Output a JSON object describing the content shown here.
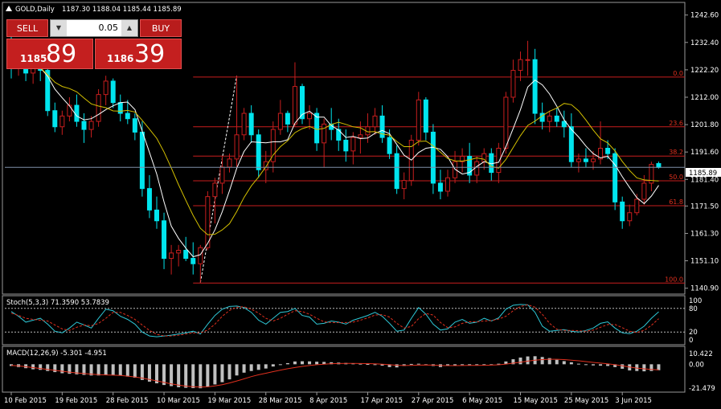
{
  "header": {
    "symbol": "GOLD,Daily",
    "ohlc": "1187.30 1188.04 1185.44 1185.89"
  },
  "trade_panel": {
    "sell_label": "SELL",
    "buy_label": "BUY",
    "lot_value": "0.05",
    "bid_small": "1185",
    "bid_big": "89",
    "ask_small": "1186",
    "ask_big": "39"
  },
  "colors": {
    "background": "#000000",
    "bull_candle": "#000000",
    "bull_candle_border": "#ffffff",
    "bear_candle": "#00e5ee",
    "fib_lines": "#c81e1e",
    "ma_fast": "#ffffff",
    "ma_slow": "#d4c000",
    "stoch_main": "#2ec7d6",
    "stoch_signal": "#e0301e",
    "macd_hist": "#c0c0c0",
    "macd_signal": "#e0301e",
    "price_line": "#7f8fa8"
  },
  "chart_data": {
    "type": "candlestick",
    "symbol": "GOLD",
    "timeframe": "Daily",
    "y_ticks": [
      1242.6,
      1232.4,
      1222.2,
      1212.0,
      1201.8,
      1191.6,
      1181.4,
      1171.5,
      1161.3,
      1151.1,
      1140.9
    ],
    "y_tick_labels": [
      "1242.60",
      "1232.40",
      "1222.20",
      "1212.00",
      "1201.80",
      "1191.60",
      "1181.40",
      "1171.50",
      "1161.30",
      "1151.10",
      "1140.90"
    ],
    "ylim": [
      1139.0,
      1247.0
    ],
    "current_price": 1185.89,
    "current_price_label": "1185.89",
    "x_labels": [
      {
        "index": 0,
        "label": "10 Feb 2015"
      },
      {
        "index": 7,
        "label": "19 Feb 2015"
      },
      {
        "index": 14,
        "label": "28 Feb 2015"
      },
      {
        "index": 21,
        "label": "10 Mar 2015"
      },
      {
        "index": 28,
        "label": "19 Mar 2015"
      },
      {
        "index": 35,
        "label": "28 Mar 2015"
      },
      {
        "index": 42,
        "label": "8 Apr 2015"
      },
      {
        "index": 49,
        "label": "17 Apr 2015"
      },
      {
        "index": 56,
        "label": "27 Apr 2015"
      },
      {
        "index": 63,
        "label": "6 May 2015"
      },
      {
        "index": 70,
        "label": "15 May 2015"
      },
      {
        "index": 77,
        "label": "25 May 2015"
      },
      {
        "index": 84,
        "label": "3 Jun 2015"
      }
    ],
    "ohlc": [
      [
        1232.0,
        1236.0,
        1219.0,
        1223.0
      ],
      [
        1223.0,
        1230.0,
        1220.0,
        1225.0
      ],
      [
        1225.0,
        1227.0,
        1218.0,
        1221.0
      ],
      [
        1221.0,
        1226.0,
        1217.0,
        1224.0
      ],
      [
        1224.0,
        1226.0,
        1218.0,
        1222.0
      ],
      [
        1222.0,
        1223.0,
        1205.0,
        1207.0
      ],
      [
        1207.0,
        1210.0,
        1199.0,
        1201.0
      ],
      [
        1201.0,
        1207.0,
        1198.0,
        1205.0
      ],
      [
        1205.0,
        1212.0,
        1203.0,
        1209.0
      ],
      [
        1209.0,
        1213.0,
        1201.0,
        1203.0
      ],
      [
        1203.0,
        1206.0,
        1195.0,
        1200.0
      ],
      [
        1200.0,
        1205.0,
        1197.0,
        1203.0
      ],
      [
        1203.0,
        1215.0,
        1201.0,
        1213.0
      ],
      [
        1213.0,
        1220.0,
        1209.0,
        1218.0
      ],
      [
        1218.0,
        1219.0,
        1208.0,
        1210.0
      ],
      [
        1210.0,
        1213.0,
        1203.0,
        1206.0
      ],
      [
        1206.0,
        1211.0,
        1202.0,
        1204.0
      ],
      [
        1204.0,
        1206.0,
        1196.0,
        1199.0
      ],
      [
        1199.0,
        1203.0,
        1175.0,
        1178.0
      ],
      [
        1178.0,
        1183.0,
        1167.0,
        1170.0
      ],
      [
        1170.0,
        1175.0,
        1163.0,
        1166.0
      ],
      [
        1166.0,
        1169.0,
        1148.0,
        1152.0
      ],
      [
        1152.0,
        1157.0,
        1146.0,
        1154.0
      ],
      [
        1154.0,
        1157.0,
        1149.0,
        1155.0
      ],
      [
        1155.0,
        1160.0,
        1151.0,
        1152.0
      ],
      [
        1152.0,
        1158.0,
        1146.0,
        1150.0
      ],
      [
        1150.0,
        1157.0,
        1143.0,
        1156.0
      ],
      [
        1156.0,
        1177.0,
        1155.0,
        1175.0
      ],
      [
        1175.0,
        1182.0,
        1165.0,
        1180.0
      ],
      [
        1180.0,
        1190.0,
        1176.0,
        1186.0
      ],
      [
        1186.0,
        1191.0,
        1184.0,
        1189.0
      ],
      [
        1189.0,
        1220.0,
        1186.0,
        1198.0
      ],
      [
        1198.0,
        1208.0,
        1196.0,
        1206.0
      ],
      [
        1206.0,
        1209.0,
        1195.0,
        1198.0
      ],
      [
        1198.0,
        1200.0,
        1182.0,
        1185.0
      ],
      [
        1185.0,
        1192.0,
        1180.0,
        1188.0
      ],
      [
        1188.0,
        1203.0,
        1184.0,
        1200.0
      ],
      [
        1200.0,
        1211.0,
        1198.0,
        1206.0
      ],
      [
        1206.0,
        1207.0,
        1199.0,
        1202.0
      ],
      [
        1202.0,
        1225.0,
        1201.0,
        1216.0
      ],
      [
        1216.0,
        1217.0,
        1202.0,
        1204.0
      ],
      [
        1204.0,
        1209.0,
        1200.0,
        1206.0
      ],
      [
        1206.0,
        1208.0,
        1192.0,
        1195.0
      ],
      [
        1195.0,
        1204.0,
        1186.0,
        1202.0
      ],
      [
        1202.0,
        1208.0,
        1196.0,
        1200.0
      ],
      [
        1200.0,
        1204.0,
        1192.0,
        1196.0
      ],
      [
        1196.0,
        1200.0,
        1188.0,
        1192.0
      ],
      [
        1192.0,
        1199.0,
        1187.0,
        1197.0
      ],
      [
        1197.0,
        1203.0,
        1191.0,
        1198.0
      ],
      [
        1198.0,
        1206.0,
        1195.0,
        1201.0
      ],
      [
        1201.0,
        1208.0,
        1198.0,
        1205.0
      ],
      [
        1205.0,
        1209.0,
        1195.0,
        1197.0
      ],
      [
        1197.0,
        1200.0,
        1189.0,
        1191.0
      ],
      [
        1191.0,
        1194.0,
        1176.0,
        1178.0
      ],
      [
        1178.0,
        1184.0,
        1174.0,
        1181.0
      ],
      [
        1181.0,
        1198.0,
        1179.0,
        1196.0
      ],
      [
        1196.0,
        1214.0,
        1194.0,
        1211.0
      ],
      [
        1211.0,
        1212.0,
        1196.0,
        1199.0
      ],
      [
        1199.0,
        1202.0,
        1176.0,
        1180.0
      ],
      [
        1180.0,
        1185.0,
        1174.0,
        1177.0
      ],
      [
        1177.0,
        1185.0,
        1175.0,
        1182.0
      ],
      [
        1182.0,
        1192.0,
        1180.0,
        1188.0
      ],
      [
        1188.0,
        1193.0,
        1184.0,
        1190.0
      ],
      [
        1190.0,
        1195.0,
        1180.0,
        1183.0
      ],
      [
        1183.0,
        1190.0,
        1180.0,
        1188.0
      ],
      [
        1188.0,
        1193.0,
        1185.0,
        1191.0
      ],
      [
        1191.0,
        1193.0,
        1181.0,
        1184.0
      ],
      [
        1184.0,
        1195.0,
        1180.0,
        1193.0
      ],
      [
        1193.0,
        1214.0,
        1191.0,
        1212.0
      ],
      [
        1212.0,
        1226.0,
        1210.0,
        1222.0
      ],
      [
        1222.0,
        1229.0,
        1218.0,
        1226.0
      ],
      [
        1226.0,
        1233.0,
        1220.0,
        1226.0
      ],
      [
        1226.0,
        1230.0,
        1202.0,
        1206.0
      ],
      [
        1206.0,
        1210.0,
        1200.0,
        1203.0
      ],
      [
        1203.0,
        1207.0,
        1199.0,
        1205.0
      ],
      [
        1205.0,
        1208.0,
        1201.0,
        1203.0
      ],
      [
        1203.0,
        1207.0,
        1197.0,
        1201.0
      ],
      [
        1201.0,
        1206.0,
        1186.0,
        1188.0
      ],
      [
        1188.0,
        1191.0,
        1184.0,
        1189.0
      ],
      [
        1189.0,
        1193.0,
        1186.0,
        1188.0
      ],
      [
        1188.0,
        1192.0,
        1185.0,
        1189.0
      ],
      [
        1189.0,
        1203.0,
        1187.0,
        1193.0
      ],
      [
        1193.0,
        1196.0,
        1189.0,
        1191.0
      ],
      [
        1191.0,
        1193.0,
        1170.0,
        1173.0
      ],
      [
        1173.0,
        1175.0,
        1163.0,
        1166.0
      ],
      [
        1166.0,
        1172.0,
        1164.0,
        1169.0
      ],
      [
        1169.0,
        1176.0,
        1168.0,
        1174.0
      ],
      [
        1174.0,
        1183.0,
        1172.0,
        1180.0
      ],
      [
        1180.0,
        1188.0,
        1177.0,
        1187.0
      ],
      [
        1187.3,
        1188.04,
        1185.44,
        1185.89
      ]
    ],
    "fibonacci": {
      "start_index": 26,
      "start_price": 1143.0,
      "end_index": 31,
      "end_price": 1220.0,
      "line_from_index": 25,
      "levels": [
        {
          "label": "0.0",
          "price": 1219.5
        },
        {
          "label": "23.6",
          "price": 1201.0
        },
        {
          "label": "38.2",
          "price": 1190.1
        },
        {
          "label": "50.0",
          "price": 1180.9
        },
        {
          "label": "61.8",
          "price": 1171.6
        },
        {
          "label": "100.0",
          "price": 1142.8
        }
      ]
    },
    "moving_averages": [
      {
        "type": "fast",
        "period": 5
      },
      {
        "type": "slow",
        "period": 10
      }
    ],
    "stochastic": {
      "label": "Stoch(5,3,3) 71.3590 53.7839",
      "levels": [
        80,
        20
      ],
      "scale_labels": [
        "100",
        "80",
        "20",
        "0"
      ],
      "main": [
        72,
        60,
        45,
        50,
        55,
        40,
        22,
        18,
        30,
        45,
        38,
        30,
        55,
        78,
        74,
        60,
        52,
        40,
        20,
        10,
        8,
        10,
        12,
        15,
        18,
        22,
        15,
        40,
        62,
        78,
        85,
        86,
        82,
        70,
        50,
        40,
        55,
        70,
        72,
        80,
        62,
        58,
        40,
        42,
        48,
        45,
        40,
        50,
        56,
        62,
        70,
        60,
        42,
        22,
        25,
        55,
        82,
        65,
        40,
        25,
        28,
        45,
        52,
        42,
        45,
        55,
        48,
        56,
        78,
        88,
        90,
        89,
        70,
        35,
        22,
        24,
        26,
        22,
        20,
        24,
        30,
        42,
        46,
        30,
        18,
        16,
        22,
        35,
        55,
        71.359
      ],
      "signal": [
        68,
        62,
        55,
        52,
        50,
        48,
        38,
        28,
        24,
        32,
        38,
        36,
        42,
        55,
        70,
        70,
        62,
        52,
        38,
        24,
        14,
        10,
        10,
        12,
        15,
        18,
        18,
        25,
        40,
        60,
        75,
        83,
        84,
        78,
        68,
        55,
        48,
        55,
        65,
        74,
        72,
        65,
        55,
        46,
        44,
        44,
        44,
        45,
        50,
        56,
        63,
        64,
        58,
        42,
        30,
        34,
        54,
        67,
        63,
        44,
        31,
        33,
        42,
        46,
        46,
        48,
        49,
        53,
        60,
        74,
        85,
        89,
        83,
        65,
        42,
        27,
        24,
        24,
        23,
        22,
        25,
        32,
        39,
        39,
        31,
        22,
        19,
        24,
        37,
        53.784
      ]
    },
    "macd": {
      "label": "MACD(12,26,9) -5.301 -4.951",
      "scale_labels": [
        "10.422",
        "0.00",
        "-21.479"
      ],
      "ylim": [
        -22.0,
        11.0
      ],
      "histogram": [
        -1.5,
        -2.5,
        -3.5,
        -4.5,
        -5,
        -6,
        -7,
        -8,
        -8.5,
        -9,
        -9.5,
        -10,
        -10,
        -9.5,
        -9.5,
        -10,
        -11,
        -12,
        -14,
        -15.5,
        -17,
        -18.5,
        -19.5,
        -20.5,
        -21,
        -21.3,
        -21.4,
        -20,
        -18,
        -16,
        -13.5,
        -10,
        -7.5,
        -6,
        -5,
        -3.8,
        -2,
        -0.5,
        1,
        2.5,
        2.7,
        2.6,
        2.3,
        2.1,
        1.8,
        1.5,
        1.2,
        0.8,
        0.5,
        0.2,
        -0.5,
        -1.2,
        -2.5,
        -2.8,
        -1.5,
        0.3,
        0.5,
        -0.3,
        -1.5,
        -2.5,
        -1.5,
        -1,
        -0.5,
        -0.8,
        -0.7,
        -0.3,
        -0.2,
        0.5,
        2.5,
        4.5,
        6,
        7,
        7.2,
        6.5,
        5.5,
        4,
        2.8,
        1.8,
        0.5,
        -0.5,
        -1,
        -1.2,
        -1.5,
        -2.5,
        -4,
        -5.5,
        -6,
        -6.3,
        -6,
        -5.301
      ],
      "signal": [
        -1,
        -1.5,
        -2.2,
        -3,
        -3.8,
        -4.6,
        -5.4,
        -6.2,
        -7,
        -7.7,
        -8.3,
        -8.8,
        -9.2,
        -9.5,
        -9.7,
        -10,
        -10.6,
        -11.3,
        -12.3,
        -13.5,
        -14.8,
        -16.2,
        -17.5,
        -18.6,
        -19.5,
        -20,
        -20.3,
        -20.1,
        -19.3,
        -18.2,
        -16.7,
        -14.9,
        -13,
        -11,
        -9.4,
        -8,
        -6.6,
        -5.2,
        -4,
        -2.9,
        -1.9,
        -1.1,
        -0.4,
        0.1,
        0.5,
        0.7,
        0.8,
        0.8,
        0.7,
        0.6,
        0.4,
        0.1,
        -0.4,
        -0.9,
        -1.1,
        -1.0,
        -0.8,
        -0.7,
        -0.8,
        -1.1,
        -1.2,
        -1.2,
        -1.1,
        -1.0,
        -1.0,
        -0.9,
        -0.8,
        -0.5,
        0.2,
        1.0,
        1.9,
        2.8,
        3.6,
        4.2,
        4.5,
        4.5,
        4.2,
        3.7,
        3.1,
        2.4,
        1.7,
        1.0,
        0.4,
        -0.4,
        -1.4,
        -2.5,
        -3.4,
        -4.1,
        -4.6,
        -4.951
      ]
    }
  }
}
